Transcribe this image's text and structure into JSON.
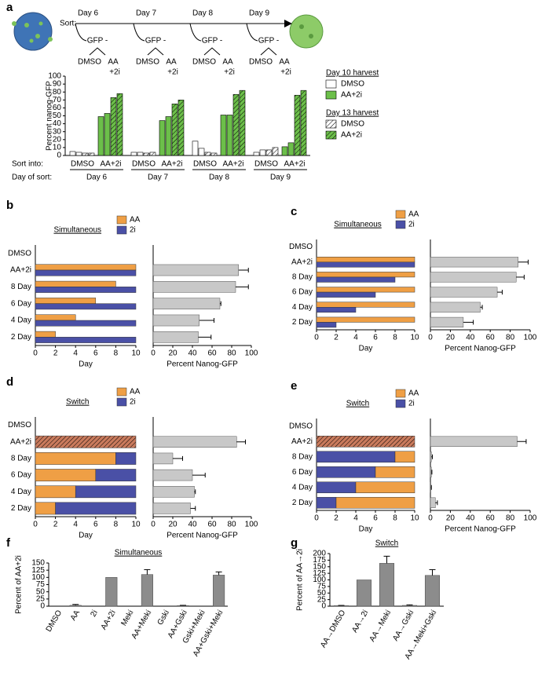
{
  "panels": [
    "a",
    "b",
    "c",
    "d",
    "e",
    "f",
    "g"
  ],
  "schematic": {
    "sort": "Sort:",
    "days": [
      "Day 6",
      "Day 7",
      "Day 8",
      "Day 9"
    ],
    "gate": "GFP -",
    "branch_left": "DMSO",
    "branch_right": [
      "AA",
      "+2i"
    ]
  },
  "chart_data": [
    {
      "type": "bar",
      "ylabel": "Percent nanog-GFP",
      "ylim": [
        0,
        100
      ],
      "yticks": [
        0,
        10,
        20,
        30,
        40,
        50,
        60,
        70,
        80,
        90,
        100
      ],
      "groups": [
        "Day 6",
        "Day 7",
        "Day 8",
        "Day 9"
      ],
      "sort_into": [
        "DMSO",
        "AA+2i"
      ],
      "row_labels": [
        "Sort into:",
        "Day of sort:"
      ],
      "legend_titles": [
        "Day 10 harvest",
        "Day 13 harvest"
      ],
      "series": [
        {
          "name": "DMSO",
          "legend_group": 0,
          "color": "#ffffff",
          "values": [
            5,
            4,
            4,
            4,
            18,
            9,
            4,
            7
          ]
        },
        {
          "name": "DMSO",
          "legend_group": 1,
          "color": "#ffffff",
          "pattern": "hatch",
          "values": [
            3,
            3,
            3,
            4,
            4,
            3,
            7,
            10
          ]
        },
        {
          "name": "AA+2i",
          "legend_group": 0,
          "color": "#6cbf4a",
          "values": [
            49,
            53,
            44,
            49,
            51,
            51,
            11,
            16
          ]
        },
        {
          "name": "AA+2i",
          "legend_group": 1,
          "color": "#6cbf4a",
          "pattern": "hatch",
          "values": [
            73,
            78,
            65,
            70,
            77,
            82,
            76,
            82
          ]
        }
      ]
    },
    {
      "type": "timeline",
      "title": "Simultaneous",
      "layout": "paired",
      "categories": [
        "DMSO",
        "AA+2i",
        "8 Day",
        "6 Day",
        "4 Day",
        "2 Day"
      ],
      "xlabel": "Day",
      "xlim": [
        0,
        10
      ],
      "xticks": [
        0,
        2,
        4,
        6,
        8,
        10
      ],
      "series": [
        {
          "name": "AA",
          "color": "#ef9f45",
          "values": [
            null,
            10,
            8,
            6,
            4,
            2
          ]
        },
        {
          "name": "2i",
          "color": "#4a50a6",
          "values": [
            null,
            10,
            10,
            10,
            10,
            10
          ]
        }
      ]
    },
    {
      "type": "barh",
      "xlabel": "Percent Nanog-GFP",
      "xlim": [
        0,
        100
      ],
      "xticks": [
        0,
        20,
        40,
        60,
        80,
        100
      ],
      "color": "#c8c8c8",
      "values": [
        null,
        87,
        84,
        68,
        47,
        46
      ],
      "errors": [
        null,
        10,
        13,
        1,
        15,
        13
      ]
    },
    {
      "type": "timeline",
      "title": "Simultaneous",
      "layout": "paired",
      "categories": [
        "DMSO",
        "AA+2i",
        "8 Day",
        "6 Day",
        "4 Day",
        "2 Day"
      ],
      "xlabel": "Day",
      "xlim": [
        0,
        10
      ],
      "xticks": [
        0,
        2,
        4,
        6,
        8,
        10
      ],
      "series": [
        {
          "name": "AA",
          "color": "#ef9f45",
          "values": [
            null,
            10,
            10,
            10,
            10,
            10
          ]
        },
        {
          "name": "2i",
          "color": "#4a50a6",
          "values": [
            null,
            10,
            8,
            6,
            4,
            2
          ]
        }
      ]
    },
    {
      "type": "barh",
      "xlabel": "Percent Nanog-GFP",
      "xlim": [
        0,
        100
      ],
      "xticks": [
        0,
        20,
        40,
        60,
        80,
        100
      ],
      "color": "#c8c8c8",
      "values": [
        null,
        88,
        86,
        67,
        50,
        33
      ],
      "errors": [
        null,
        10,
        8,
        5,
        2,
        10
      ]
    },
    {
      "type": "timeline",
      "title": "Switch",
      "layout": "stacked",
      "categories": [
        "DMSO",
        "AA+2i",
        "8 Day",
        "6 Day",
        "4 Day",
        "2 Day"
      ],
      "xlabel": "Day",
      "xlim": [
        0,
        10
      ],
      "xticks": [
        0,
        2,
        4,
        6,
        8,
        10
      ],
      "series": [
        {
          "color": "#c97a5c",
          "pattern": "hatch",
          "values": [
            null,
            10,
            null,
            null,
            null,
            null
          ]
        },
        {
          "name": "AA",
          "color": "#ef9f45",
          "values": [
            null,
            null,
            8,
            6,
            4,
            2
          ]
        },
        {
          "name": "2i",
          "color": "#4a50a6",
          "values": [
            null,
            null,
            2,
            4,
            6,
            8
          ]
        }
      ]
    },
    {
      "type": "barh",
      "xlabel": "Percent Nanog-GFP",
      "xlim": [
        0,
        100
      ],
      "xticks": [
        0,
        20,
        40,
        60,
        80,
        100
      ],
      "color": "#c8c8c8",
      "values": [
        null,
        85,
        20,
        40,
        42,
        38
      ],
      "errors": [
        null,
        9,
        10,
        13,
        1,
        5
      ]
    },
    {
      "type": "timeline",
      "title": "Switch",
      "layout": "stacked",
      "stack_order": [
        0,
        2,
        1
      ],
      "categories": [
        "DMSO",
        "AA+2i",
        "8 Day",
        "6 Day",
        "4 Day",
        "2 Day"
      ],
      "xlabel": "Day",
      "xlim": [
        0,
        10
      ],
      "xticks": [
        0,
        2,
        4,
        6,
        8,
        10
      ],
      "series": [
        {
          "color": "#c97a5c",
          "pattern": "hatch",
          "values": [
            null,
            10,
            null,
            null,
            null,
            null
          ]
        },
        {
          "name": "AA",
          "color": "#ef9f45",
          "values": [
            null,
            null,
            2,
            4,
            6,
            8
          ]
        },
        {
          "name": "2i",
          "color": "#4a50a6",
          "values": [
            null,
            null,
            8,
            6,
            4,
            2
          ]
        }
      ]
    },
    {
      "type": "barh",
      "xlabel": "Percent Nanog-GFP",
      "xlim": [
        0,
        100
      ],
      "xticks": [
        0,
        20,
        40,
        60,
        80,
        100
      ],
      "color": "#c8c8c8",
      "values": [
        null,
        87,
        1,
        1,
        0.5,
        5
      ],
      "errors": [
        null,
        9,
        1,
        0.5,
        0.5,
        2
      ]
    },
    {
      "type": "bar",
      "title": "Simultaneous",
      "ylabel": "Percent of AA+2i",
      "ylim": [
        0,
        150
      ],
      "yticks": [
        0,
        25,
        50,
        75,
        100,
        125,
        150
      ],
      "color": "#8c8c8c",
      "categories": [
        "DMSO",
        "AA",
        "2i",
        "AA+2i",
        "Meki",
        "AA+Meki",
        "Gski",
        "AA+Gski",
        "Gski+Meki",
        "AA+Gski+Meki"
      ],
      "values": [
        0,
        3,
        0,
        100,
        0,
        110,
        0,
        2,
        0,
        108
      ],
      "errors": [
        null,
        3,
        null,
        null,
        null,
        17,
        null,
        1,
        null,
        11
      ]
    },
    {
      "type": "bar",
      "title": "Switch",
      "ylabel": "Percent of AA→2i",
      "ylim": [
        0,
        200
      ],
      "yticks": [
        0,
        25,
        50,
        75,
        100,
        125,
        150,
        175,
        200
      ],
      "color": "#8c8c8c",
      "categories": [
        "AA→DMSO",
        "AA→2i",
        "AA→Meki",
        "AA→Gski",
        "AA→Meki+Gski"
      ],
      "values": [
        2,
        100,
        163,
        3,
        117
      ],
      "errors": [
        1,
        null,
        27,
        2,
        22
      ]
    }
  ]
}
